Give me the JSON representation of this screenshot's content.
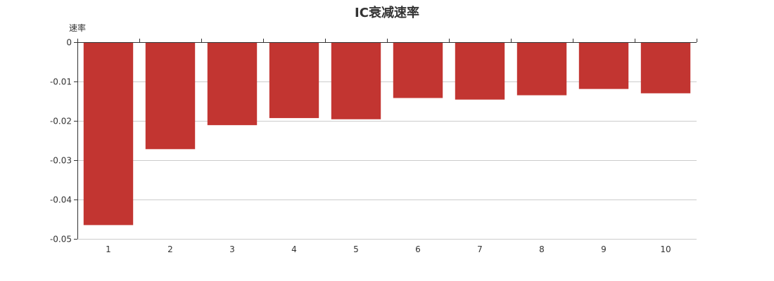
{
  "chart_data": {
    "type": "bar",
    "title": "IC衰减速率",
    "xlabel": "",
    "ylabel": "速率",
    "categories": [
      "1",
      "2",
      "3",
      "4",
      "5",
      "6",
      "7",
      "8",
      "9",
      "10"
    ],
    "values": [
      -0.0465,
      -0.0272,
      -0.0211,
      -0.0193,
      -0.0196,
      -0.0142,
      -0.0146,
      -0.0135,
      -0.0119,
      -0.013
    ],
    "ylim": [
      -0.05,
      0
    ],
    "yticks": [
      "0",
      "-0.01",
      "-0.02",
      "-0.03",
      "-0.04",
      "-0.05"
    ],
    "grid": true,
    "bar_color": "#c23531"
  }
}
